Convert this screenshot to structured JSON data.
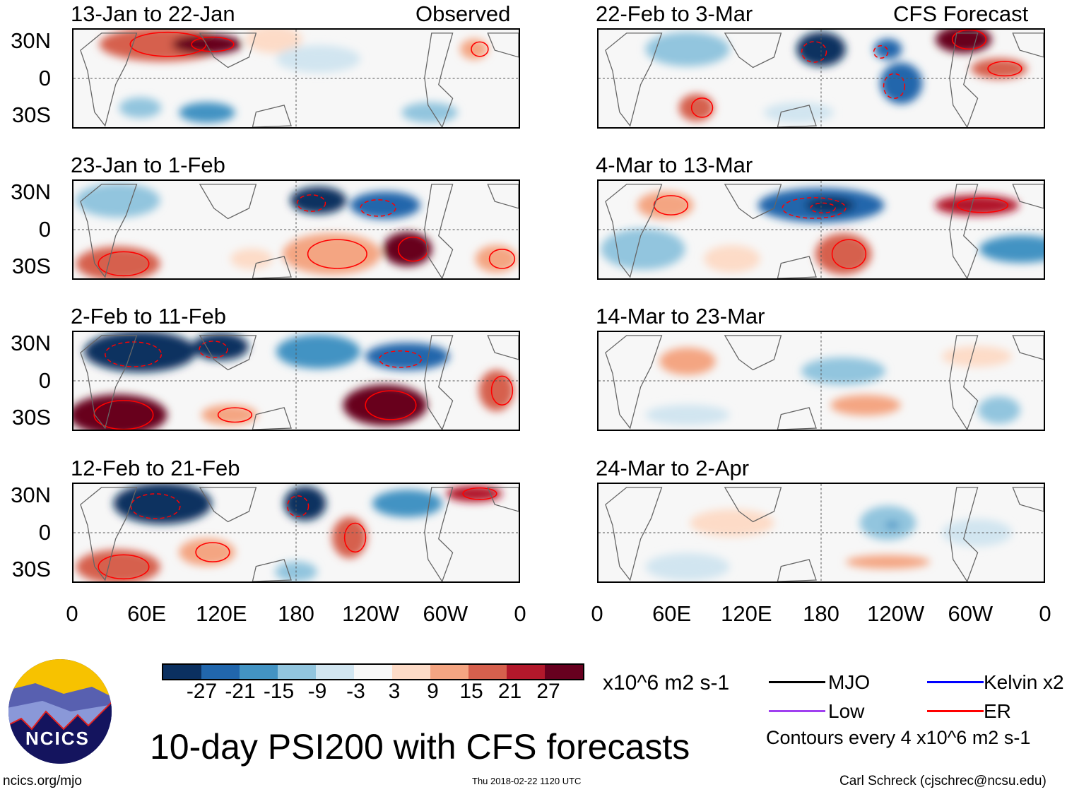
{
  "header": {
    "left_label": "Observed",
    "right_label": "CFS Forecast"
  },
  "chart_data": {
    "type": "heatmap",
    "title": "10-day PSI200 with CFS forecasts",
    "variable": "200-hPa streamfunction anomaly",
    "units": "x10^6 m2 s-1",
    "x_ticks": [
      "0",
      "60E",
      "120E",
      "180",
      "120W",
      "60W",
      "0"
    ],
    "y_ticks": [
      "30N",
      "0",
      "30S"
    ],
    "panels": [
      {
        "title": "13-Jan to 22-Jan",
        "group": "Observed"
      },
      {
        "title": "23-Jan to 1-Feb",
        "group": "Observed"
      },
      {
        "title": "2-Feb to 11-Feb",
        "group": "Observed"
      },
      {
        "title": "12-Feb to 21-Feb",
        "group": "Observed"
      },
      {
        "title": "22-Feb to 3-Mar",
        "group": "CFS Forecast"
      },
      {
        "title": "4-Mar to 13-Mar",
        "group": "CFS Forecast"
      },
      {
        "title": "14-Mar to 23-Mar",
        "group": "CFS Forecast"
      },
      {
        "title": "24-Mar to 2-Apr",
        "group": "CFS Forecast"
      }
    ],
    "colorbar": {
      "labels": [
        "-27",
        "-21",
        "-15",
        "-9",
        "-3",
        "3",
        "9",
        "15",
        "21",
        "27"
      ],
      "colors": [
        "#0b3060",
        "#2166ac",
        "#4393c3",
        "#92c5de",
        "#d1e5f0",
        "#f7f7f7",
        "#fddbc7",
        "#f4a582",
        "#d6604d",
        "#b2182b",
        "#67001f"
      ]
    },
    "contour_legend": [
      {
        "label": "MJO",
        "color": "#000000"
      },
      {
        "label": "Kelvin x2",
        "color": "#0000ff"
      },
      {
        "label": "Low",
        "color": "#a040f0"
      },
      {
        "label": "ER",
        "color": "#ff0000"
      }
    ],
    "contour_note": "Contours every 4 x10^6 m2 s-1"
  },
  "logo": {
    "text": "NCICS"
  },
  "footer": {
    "url": "ncics.org/mjo",
    "timestamp": "Thu 2018-02-22 1120 UTC",
    "credit": "Carl Schreck (cjschrec@ncsu.edu)"
  }
}
